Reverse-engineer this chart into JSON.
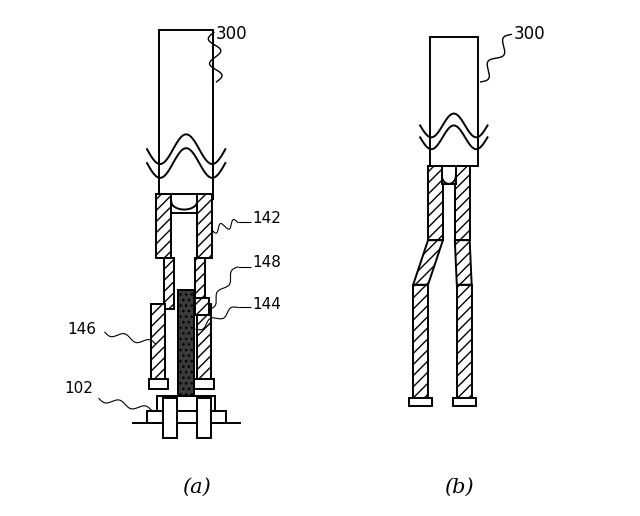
{
  "bg_color": "#ffffff",
  "line_color": "#000000",
  "label_fontsize": 11,
  "caption_fontsize": 15,
  "fig_width": 6.4,
  "fig_height": 5.16
}
